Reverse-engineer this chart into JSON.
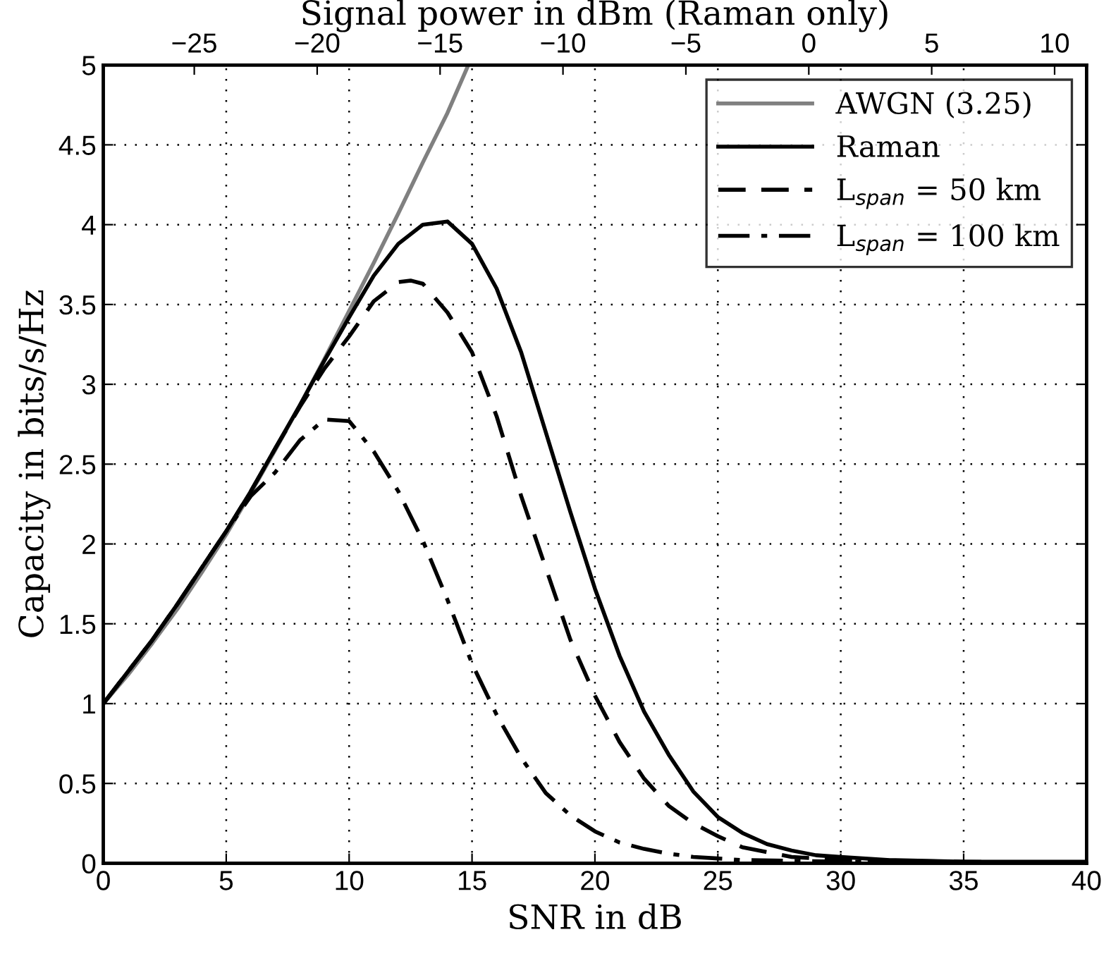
{
  "chart_data": {
    "type": "line",
    "xlabel": "SNR in dB",
    "ylabel": "Capacity in bits/s/Hz",
    "x2label": "Signal power in dBm (Raman only)",
    "xlim": [
      0,
      40
    ],
    "xticks": [
      0,
      5,
      10,
      15,
      20,
      25,
      30,
      35,
      40
    ],
    "ylim": [
      0,
      5
    ],
    "yticks": [
      0,
      0.5,
      1,
      1.5,
      2,
      2.5,
      3,
      3.5,
      4,
      4.5,
      5
    ],
    "x2lim": [
      -28.7,
      11.3
    ],
    "x2ticks": [
      {
        "value": -25,
        "label": "−25"
      },
      {
        "value": -20,
        "label": "−20"
      },
      {
        "value": -15,
        "label": "−15"
      },
      {
        "value": -10,
        "label": "−10"
      },
      {
        "value": -5,
        "label": "−5"
      },
      {
        "value": 0,
        "label": "0"
      },
      {
        "value": 5,
        "label": "5"
      },
      {
        "value": 10,
        "label": "10"
      }
    ],
    "grid": true,
    "legend": "top right",
    "marker": "none",
    "series": [
      {
        "name": "AWGN (3.25)",
        "color": "#808080",
        "line_style": "solid",
        "x": [
          0,
          1,
          2,
          3,
          4,
          5,
          6,
          7,
          8,
          9,
          10,
          11,
          12,
          13,
          14,
          14.85
        ],
        "values": [
          1.0,
          1.18,
          1.38,
          1.59,
          1.82,
          2.06,
          2.32,
          2.59,
          2.87,
          3.16,
          3.46,
          3.76,
          4.07,
          4.39,
          4.7,
          5.0
        ]
      },
      {
        "name": "Raman",
        "color": "#000000",
        "line_style": "solid",
        "x": [
          0,
          1,
          2,
          3,
          4,
          5,
          6,
          7,
          8,
          9,
          10,
          11,
          12,
          13,
          14,
          15,
          16,
          17,
          18,
          19,
          20,
          21,
          22,
          23,
          24,
          25,
          26,
          27,
          28,
          29,
          30,
          32,
          35,
          40
        ],
        "values": [
          1.0,
          1.2,
          1.4,
          1.62,
          1.85,
          2.08,
          2.33,
          2.6,
          2.87,
          3.15,
          3.42,
          3.68,
          3.88,
          4.0,
          4.02,
          3.88,
          3.6,
          3.2,
          2.7,
          2.2,
          1.72,
          1.3,
          0.95,
          0.68,
          0.45,
          0.29,
          0.19,
          0.12,
          0.08,
          0.05,
          0.04,
          0.02,
          0.01,
          0.01
        ]
      },
      {
        "name": "L$_{span}$ = 50 km",
        "color": "#000000",
        "line_style": "dashed",
        "x": [
          0,
          1,
          2,
          3,
          4,
          5,
          6,
          7,
          8,
          9,
          10,
          11,
          12,
          12.5,
          13,
          14,
          15,
          16,
          17,
          18,
          19,
          20,
          21,
          22,
          23,
          24,
          25,
          26,
          27,
          28,
          30,
          35,
          40
        ],
        "values": [
          1.0,
          1.2,
          1.4,
          1.62,
          1.85,
          2.08,
          2.33,
          2.6,
          2.86,
          3.1,
          3.3,
          3.52,
          3.64,
          3.65,
          3.63,
          3.45,
          3.2,
          2.8,
          2.3,
          1.85,
          1.4,
          1.05,
          0.76,
          0.53,
          0.36,
          0.25,
          0.17,
          0.1,
          0.07,
          0.04,
          0.02,
          0.01,
          0
        ]
      },
      {
        "name": "L$_{span}$ = 100 km",
        "color": "#000000",
        "line_style": "dashdot",
        "x": [
          0,
          1,
          2,
          3,
          4,
          5,
          6,
          7,
          8,
          9,
          10,
          11,
          12,
          13,
          14,
          15,
          16,
          17,
          18,
          19,
          20,
          21,
          22,
          23,
          24,
          26,
          30,
          40
        ],
        "values": [
          1.0,
          1.2,
          1.4,
          1.62,
          1.85,
          2.08,
          2.3,
          2.45,
          2.65,
          2.78,
          2.77,
          2.58,
          2.33,
          2.02,
          1.65,
          1.25,
          0.93,
          0.66,
          0.44,
          0.3,
          0.2,
          0.13,
          0.09,
          0.06,
          0.04,
          0.02,
          0.01,
          0
        ]
      }
    ]
  }
}
